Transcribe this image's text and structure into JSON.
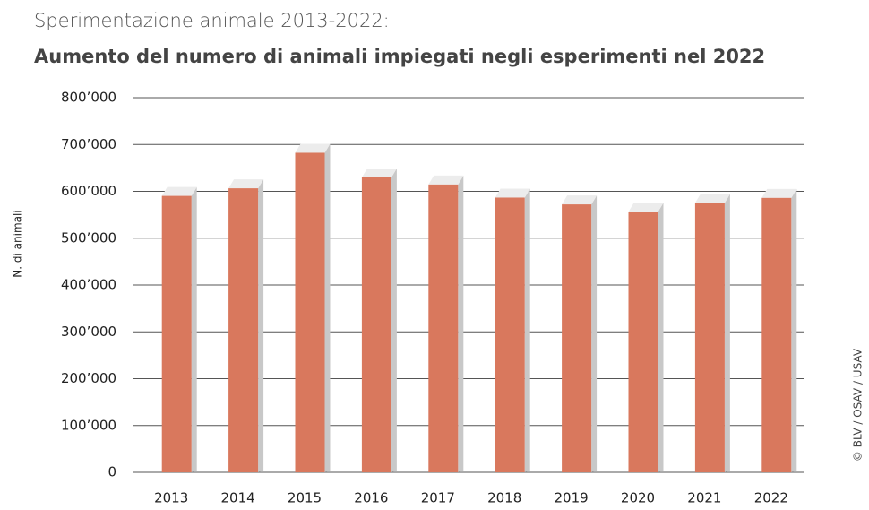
{
  "chart_data": {
    "type": "bar",
    "subtitle": "Sperimentazione animale 2013-2022:",
    "title": "Aumento del numero di animali impiegati negli esperimenti nel 2022",
    "y_label": "N. di animali",
    "source": "© BLV / OSAV / USAV",
    "categories": [
      "2013",
      "2014",
      "2015",
      "2016",
      "2017",
      "2018",
      "2019",
      "2020",
      "2021",
      "2022"
    ],
    "values": [
      590245,
      606505,
      682333,
      629773,
      614581,
      586643,
      572069,
      556107,
      575033,
      585991
    ],
    "color": "#d9785d",
    "ylim": [
      0,
      800000
    ],
    "yticks": [
      0,
      {
        "value": 100000,
        "label": "100’000"
      },
      {
        "value": 200000,
        "label": "200’000"
      },
      {
        "value": 300000,
        "label": "300’000"
      },
      {
        "value": 400000,
        "label": "400’000"
      },
      {
        "value": 500000,
        "label": "500’000"
      },
      {
        "value": 600000,
        "label": "600’000"
      },
      {
        "value": 700000,
        "label": "700’000"
      },
      {
        "value": 800000,
        "label": "800’000"
      }
    ],
    "grid": true
  }
}
